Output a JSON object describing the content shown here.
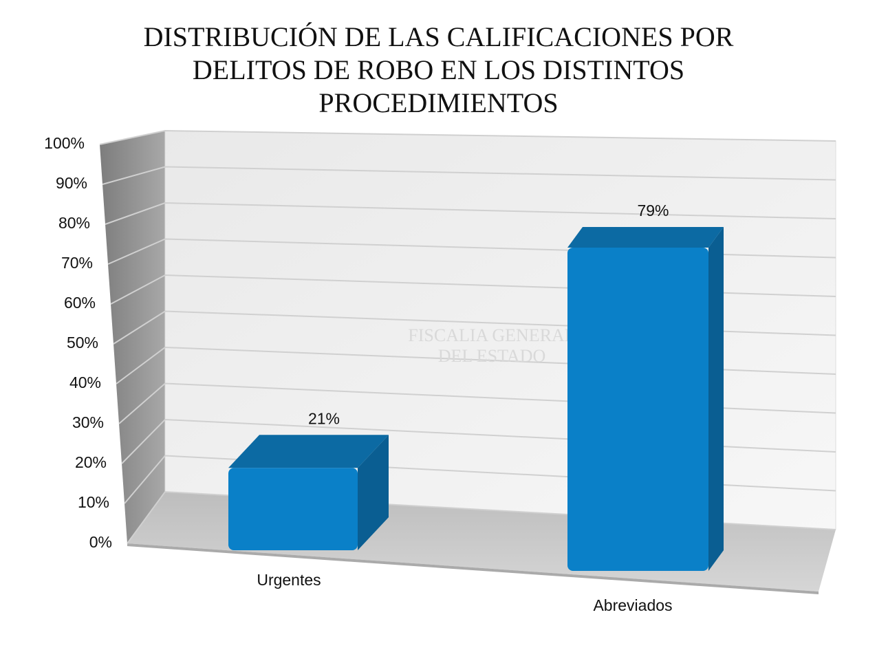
{
  "chart_data": {
    "type": "bar3d",
    "title": "DISTRIBUCIÓN DE LAS CALIFICACIONES POR DELITOS DE ROBO EN LOS DISTINTOS PROCEDIMIENTOS",
    "watermark": [
      "FISCALIA GENERAL",
      "DEL ESTADO"
    ],
    "categories": [
      "Urgentes",
      "Abreviados"
    ],
    "values": [
      21,
      79
    ],
    "value_labels": [
      "21%",
      "79%"
    ],
    "color": "#0a80c8",
    "ylim": [
      0,
      100
    ],
    "yticks": [
      {
        "value": 0,
        "label": "0%"
      },
      {
        "value": 10,
        "label": "10%"
      },
      {
        "value": 20,
        "label": "20%"
      },
      {
        "value": 30,
        "label": "30%"
      },
      {
        "value": 40,
        "label": "40%"
      },
      {
        "value": 50,
        "label": "50%"
      },
      {
        "value": 60,
        "label": "60%"
      },
      {
        "value": 70,
        "label": "70%"
      },
      {
        "value": 80,
        "label": "80%"
      },
      {
        "value": 90,
        "label": "90%"
      },
      {
        "value": 100,
        "label": "100%"
      }
    ],
    "grid": true
  }
}
